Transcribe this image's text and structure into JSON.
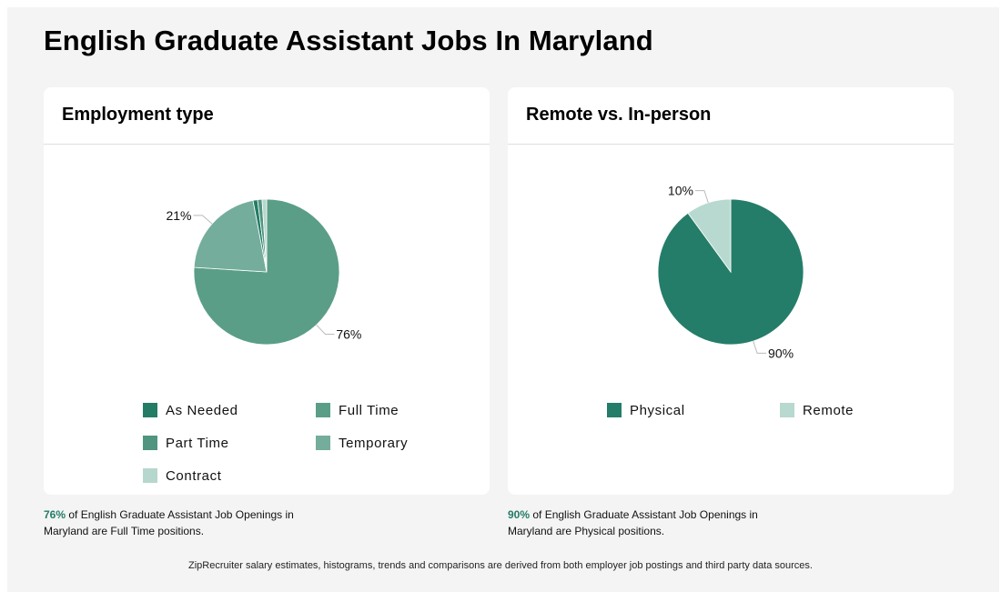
{
  "page": {
    "title": "English Graduate Assistant Jobs In Maryland"
  },
  "employment": {
    "title": "Employment type",
    "summary_pct": "76%",
    "summary_text": " of English Graduate Assistant Job Openings in Maryland are Full Time positions.",
    "legend": [
      "As Needed",
      "Full Time",
      "Part Time",
      "Temporary",
      "Contract"
    ]
  },
  "remote": {
    "title": "Remote vs. In-person",
    "summary_pct": "90%",
    "summary_text": " of English Graduate Assistant Job Openings in Maryland are Physical positions.",
    "legend": [
      "Physical",
      "Remote"
    ]
  },
  "footer": {
    "text": "ZipRecruiter salary estimates, histograms, trends and comparisons are derived from both employer job postings and third party data sources."
  },
  "chart_data": [
    {
      "type": "pie",
      "title": "Employment type",
      "labels": [
        "Full Time",
        "Temporary",
        "As Needed",
        "Part Time",
        "Contract"
      ],
      "values": [
        76,
        21,
        1,
        1,
        1
      ],
      "colors": [
        "#5a9e88",
        "#74ad9b",
        "#237c66",
        "#4f9580",
        "#b6d7cd"
      ],
      "data_labels": [
        {
          "label": "Full Time",
          "text": "76%"
        },
        {
          "label": "Temporary",
          "text": "21%"
        }
      ],
      "legend_position": "bottom"
    },
    {
      "type": "pie",
      "title": "Remote vs. In-person",
      "labels": [
        "Physical",
        "Remote"
      ],
      "values": [
        90,
        10
      ],
      "colors": [
        "#247d68",
        "#b8d9cf"
      ],
      "data_labels": [
        {
          "label": "Physical",
          "text": "90%"
        },
        {
          "label": "Remote",
          "text": "10%"
        }
      ],
      "legend_position": "bottom"
    }
  ]
}
